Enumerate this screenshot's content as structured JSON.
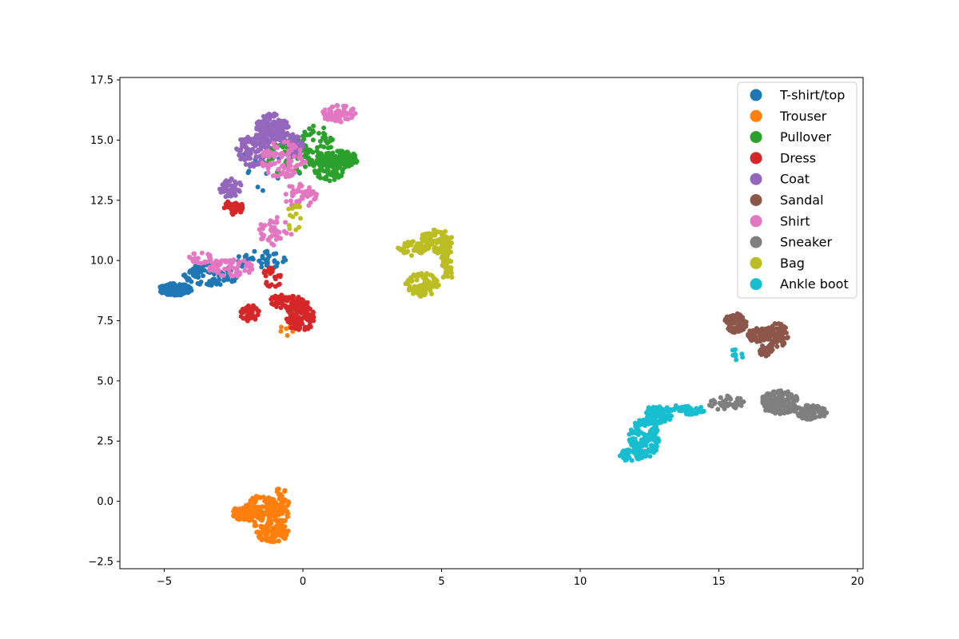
{
  "chart_data": {
    "type": "scatter",
    "title": "",
    "xlabel": "",
    "ylabel": "",
    "xlim": [
      -6.6,
      20.2
    ],
    "ylim": [
      -2.8,
      17.6
    ],
    "xticks": [
      -5,
      0,
      5,
      10,
      15,
      20
    ],
    "yticks": [
      -2.5,
      0.0,
      2.5,
      5.0,
      7.5,
      10.0,
      12.5,
      15.0,
      17.5
    ],
    "xtick_labels": [
      "−5",
      "0",
      "5",
      "10",
      "15",
      "20"
    ],
    "ytick_labels": [
      "−2.5",
      "0.0",
      "2.5",
      "5.0",
      "7.5",
      "10.0",
      "12.5",
      "15.0",
      "17.5"
    ],
    "grid": false,
    "legend_position": "top-right",
    "series": [
      {
        "name": "T-shirt/top",
        "color": "#1f77b4",
        "clusters": [
          {
            "cx": -4.6,
            "cy": 8.8,
            "rx": 0.6,
            "ry": 0.25,
            "n": 120
          },
          {
            "cx": -3.3,
            "cy": 9.4,
            "rx": 1.0,
            "ry": 0.45,
            "n": 110
          },
          {
            "cx": -1.5,
            "cy": 10.0,
            "rx": 0.9,
            "ry": 0.4,
            "n": 50
          },
          {
            "cx": -1.2,
            "cy": 14.0,
            "rx": 1.3,
            "ry": 1.2,
            "n": 25
          }
        ]
      },
      {
        "name": "Trouser",
        "color": "#ff7f0e",
        "clusters": [
          {
            "cx": -2.1,
            "cy": -0.5,
            "rx": 0.45,
            "ry": 0.35,
            "n": 70
          },
          {
            "cx": -1.5,
            "cy": -0.4,
            "rx": 0.55,
            "ry": 0.7,
            "n": 90
          },
          {
            "cx": -1.1,
            "cy": -1.3,
            "rx": 0.6,
            "ry": 0.4,
            "n": 90
          },
          {
            "cx": -0.8,
            "cy": -0.2,
            "rx": 0.3,
            "ry": 0.9,
            "n": 70
          },
          {
            "cx": -0.6,
            "cy": 7.1,
            "rx": 0.3,
            "ry": 0.25,
            "n": 6
          }
        ]
      },
      {
        "name": "Pullover",
        "color": "#2ca02c",
        "clusters": [
          {
            "cx": 1.3,
            "cy": 14.2,
            "rx": 0.7,
            "ry": 0.35,
            "n": 130
          },
          {
            "cx": 0.9,
            "cy": 13.8,
            "rx": 0.6,
            "ry": 0.5,
            "n": 60
          },
          {
            "cx": 0.5,
            "cy": 14.8,
            "rx": 0.6,
            "ry": 0.9,
            "n": 60
          },
          {
            "cx": -0.5,
            "cy": 14.3,
            "rx": 0.8,
            "ry": 0.8,
            "n": 40
          }
        ]
      },
      {
        "name": "Dress",
        "color": "#d62728",
        "clusters": [
          {
            "cx": -0.1,
            "cy": 7.7,
            "rx": 0.5,
            "ry": 0.7,
            "n": 120
          },
          {
            "cx": -0.6,
            "cy": 8.3,
            "rx": 0.6,
            "ry": 0.3,
            "n": 60
          },
          {
            "cx": -1.9,
            "cy": 7.8,
            "rx": 0.35,
            "ry": 0.35,
            "n": 45
          },
          {
            "cx": -2.5,
            "cy": 12.2,
            "rx": 0.35,
            "ry": 0.3,
            "n": 45
          },
          {
            "cx": -1.1,
            "cy": 9.3,
            "rx": 0.4,
            "ry": 0.4,
            "n": 25
          }
        ]
      },
      {
        "name": "Coat",
        "color": "#9467bd",
        "clusters": [
          {
            "cx": -1.1,
            "cy": 15.5,
            "rx": 0.6,
            "ry": 0.6,
            "n": 140
          },
          {
            "cx": -1.8,
            "cy": 14.6,
            "rx": 0.6,
            "ry": 0.7,
            "n": 100
          },
          {
            "cx": -2.6,
            "cy": 13.0,
            "rx": 0.4,
            "ry": 0.4,
            "n": 50
          },
          {
            "cx": -0.4,
            "cy": 14.8,
            "rx": 0.4,
            "ry": 0.5,
            "n": 40
          }
        ]
      },
      {
        "name": "Sandal",
        "color": "#8c564b",
        "clusters": [
          {
            "cx": 15.6,
            "cy": 7.4,
            "rx": 0.4,
            "ry": 0.4,
            "n": 80
          },
          {
            "cx": 16.5,
            "cy": 6.9,
            "rx": 0.5,
            "ry": 0.3,
            "n": 80
          },
          {
            "cx": 17.1,
            "cy": 6.9,
            "rx": 0.4,
            "ry": 0.5,
            "n": 80
          },
          {
            "cx": 16.7,
            "cy": 6.3,
            "rx": 0.25,
            "ry": 0.3,
            "n": 30
          }
        ]
      },
      {
        "name": "Shirt",
        "color": "#e377c2",
        "clusters": [
          {
            "cx": 1.3,
            "cy": 16.1,
            "rx": 0.6,
            "ry": 0.4,
            "n": 60
          },
          {
            "cx": -0.7,
            "cy": 14.2,
            "rx": 0.8,
            "ry": 0.8,
            "n": 90
          },
          {
            "cx": -0.1,
            "cy": 12.7,
            "rx": 0.6,
            "ry": 0.5,
            "n": 50
          },
          {
            "cx": -2.6,
            "cy": 9.7,
            "rx": 0.8,
            "ry": 0.4,
            "n": 70
          },
          {
            "cx": -1.0,
            "cy": 11.2,
            "rx": 0.6,
            "ry": 0.6,
            "n": 40
          },
          {
            "cx": -3.7,
            "cy": 10.1,
            "rx": 0.4,
            "ry": 0.25,
            "n": 25
          }
        ]
      },
      {
        "name": "Sneaker",
        "color": "#7f7f7f",
        "clusters": [
          {
            "cx": 17.2,
            "cy": 4.1,
            "rx": 0.7,
            "ry": 0.5,
            "n": 140
          },
          {
            "cx": 18.3,
            "cy": 3.7,
            "rx": 0.6,
            "ry": 0.3,
            "n": 90
          },
          {
            "cx": 15.2,
            "cy": 4.1,
            "rx": 0.7,
            "ry": 0.3,
            "n": 40
          }
        ]
      },
      {
        "name": "Bag",
        "color": "#bcbd22",
        "clusters": [
          {
            "cx": 4.8,
            "cy": 10.8,
            "rx": 0.6,
            "ry": 0.5,
            "n": 110
          },
          {
            "cx": 3.9,
            "cy": 10.5,
            "rx": 0.5,
            "ry": 0.3,
            "n": 40
          },
          {
            "cx": 4.3,
            "cy": 9.0,
            "rx": 0.6,
            "ry": 0.5,
            "n": 90
          },
          {
            "cx": 5.2,
            "cy": 9.8,
            "rx": 0.25,
            "ry": 0.7,
            "n": 45
          },
          {
            "cx": -0.3,
            "cy": 11.8,
            "rx": 0.3,
            "ry": 0.6,
            "n": 15
          }
        ]
      },
      {
        "name": "Ankle boot",
        "color": "#17becf",
        "clusters": [
          {
            "cx": 12.3,
            "cy": 2.6,
            "rx": 0.55,
            "ry": 0.8,
            "n": 130
          },
          {
            "cx": 12.8,
            "cy": 3.6,
            "rx": 0.5,
            "ry": 0.4,
            "n": 90
          },
          {
            "cx": 13.8,
            "cy": 3.8,
            "rx": 0.7,
            "ry": 0.2,
            "n": 50
          },
          {
            "cx": 11.8,
            "cy": 1.9,
            "rx": 0.4,
            "ry": 0.25,
            "n": 40
          },
          {
            "cx": 15.6,
            "cy": 6.2,
            "rx": 0.3,
            "ry": 0.4,
            "n": 8
          }
        ]
      }
    ]
  }
}
